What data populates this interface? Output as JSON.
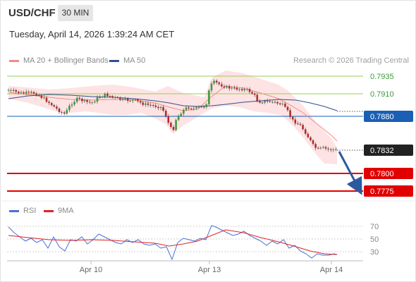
{
  "header": {
    "symbol": "USD/CHF",
    "timeframe": "30 MIN",
    "datetime": "Tuesday, April 14, 2026 1:39:24 AM CET"
  },
  "legend": {
    "main": [
      {
        "label": "MA 20 + Bollinger Bands",
        "color": "#f28b82"
      },
      {
        "label": "MA 50",
        "color": "#2f4f8f"
      }
    ],
    "research": "Research © 2026 Trading Central",
    "rsi": [
      {
        "label": "RSI",
        "color": "#4a6fd6"
      },
      {
        "label": "9MA",
        "color": "#e02424"
      }
    ]
  },
  "levels": [
    {
      "value": "0.7935",
      "kind": "resistance-green"
    },
    {
      "value": "0.7910",
      "kind": "resistance-green"
    },
    {
      "value": "0.7880",
      "kind": "pivot-blue"
    },
    {
      "value": "0.7832",
      "kind": "last-price"
    },
    {
      "value": "0.7800",
      "kind": "support-red"
    },
    {
      "value": "0.7775",
      "kind": "support-red"
    }
  ],
  "rsi_levels": [
    "70",
    "50",
    "30"
  ],
  "x_axis": [
    "Apr 10",
    "Apr 13",
    "Apr 14"
  ],
  "colors": {
    "green_line": "#9acd5a",
    "blue_line": "#1a5fb4",
    "red_line": "#e00000",
    "up_candle": "#3d9a3d",
    "down_candle": "#b22a2a",
    "arrow": "#2c5aa0",
    "bollinger_fill": "#fde0e0"
  }
}
